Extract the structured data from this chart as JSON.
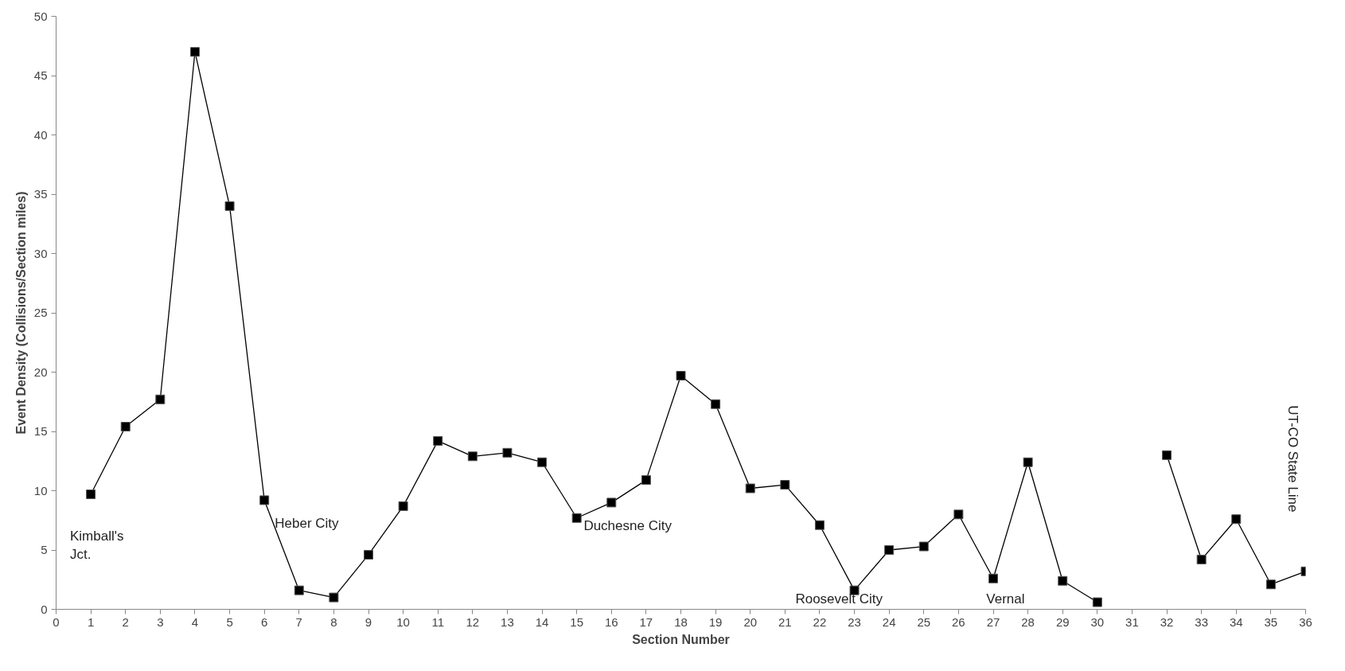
{
  "chart_data": {
    "type": "line",
    "xlabel": "Section Number",
    "ylabel": "Event Density (Collisions/Section miles)",
    "x": [
      1,
      2,
      3,
      4,
      5,
      6,
      7,
      8,
      9,
      10,
      11,
      12,
      13,
      14,
      15,
      16,
      17,
      18,
      19,
      20,
      21,
      22,
      23,
      24,
      25,
      26,
      27,
      28,
      29,
      30,
      31,
      32,
      33,
      34,
      35,
      36
    ],
    "series": [
      {
        "color": "#000000",
        "values": [
          9.7,
          15.4,
          17.7,
          47.0,
          34.0,
          9.2,
          1.6,
          1.0,
          4.6,
          8.7,
          14.2,
          12.9,
          13.2,
          12.4,
          7.7,
          9.0,
          10.9,
          19.7,
          17.3,
          10.2,
          10.5,
          7.1,
          1.6,
          5.0,
          5.3,
          8.0,
          2.6,
          12.4,
          2.4,
          0.6,
          null,
          13.0,
          4.2,
          7.6,
          2.1,
          3.2
        ]
      }
    ],
    "xlim": [
      0,
      36
    ],
    "xticks": [
      0,
      1,
      2,
      3,
      4,
      5,
      6,
      7,
      8,
      9,
      10,
      11,
      12,
      13,
      14,
      15,
      16,
      17,
      18,
      19,
      20,
      21,
      22,
      23,
      24,
      25,
      26,
      27,
      28,
      29,
      30,
      31,
      32,
      33,
      34,
      35,
      36
    ],
    "ylim": [
      0,
      50
    ],
    "yticks": [
      0,
      5,
      10,
      15,
      20,
      25,
      30,
      35,
      40,
      45,
      50
    ],
    "grid": false,
    "marker": "square",
    "line_style": "solid",
    "annotations": [
      "Kimball's\nJct.",
      "Heber City",
      "Duchesne City",
      "Roosevelt City",
      "Vernal",
      "UT-CO State Line"
    ]
  }
}
